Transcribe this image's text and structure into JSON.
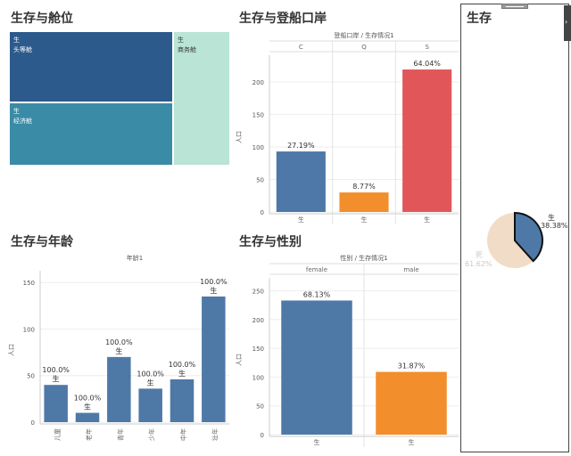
{
  "panels": {
    "treemap_title": "生存与舱位",
    "embark_title": "生存与登船口岸",
    "age_title": "生存与年龄",
    "sex_title": "生存与性别",
    "pie_title": "生存"
  },
  "colors": {
    "treemap_first": "#2c5a8c",
    "treemap_economy": "#3a8ba6",
    "treemap_business": "#b9e4d6",
    "bar_c": "#4d78a8",
    "bar_q": "#f28e2b",
    "bar_s": "#e15759",
    "bar_blue": "#4e79a7",
    "bar_orange": "#f28e2b",
    "pie_survived": "#4e79a7",
    "pie_died": "#f1dcc8"
  },
  "chart_data": [
    {
      "type": "treemap",
      "title": "生存与舱位",
      "items": [
        {
          "status": "生",
          "class": "头等舱"
        },
        {
          "status": "生",
          "class": "经济舱"
        },
        {
          "status": "生",
          "class": "商务舱"
        }
      ]
    },
    {
      "type": "bar",
      "title": "生存与登船口岸",
      "header": "登船口岸 / 生存情况1",
      "categories": [
        "C",
        "Q",
        "S"
      ],
      "values": [
        93,
        30,
        219
      ],
      "value_labels": [
        "27.19%",
        "8.77%",
        "64.04%"
      ],
      "bottom_labels": [
        "生",
        "生",
        "生"
      ],
      "ylabel": "人口",
      "ylim": [
        0,
        230
      ],
      "yticks": [
        "0",
        "50",
        "100",
        "150",
        "200"
      ]
    },
    {
      "type": "bar",
      "title": "生存与年龄",
      "header": "年龄1",
      "categories": [
        "儿童",
        "老年",
        "青年",
        "少年",
        "中年",
        "壮年"
      ],
      "values": [
        40,
        10,
        70,
        36,
        46,
        135
      ],
      "value_labels": [
        "100.0%",
        "100.0%",
        "100.0%",
        "100.0%",
        "100.0%",
        "100.0%"
      ],
      "sub_labels": [
        "生",
        "生",
        "生",
        "生",
        "生",
        "生"
      ],
      "ylabel": "人口",
      "ylim": [
        0,
        155
      ],
      "yticks": [
        "0",
        "50",
        "100",
        "150"
      ]
    },
    {
      "type": "bar",
      "title": "生存与性别",
      "header": "性别 / 生存情况1",
      "categories": [
        "female",
        "male"
      ],
      "values": [
        233,
        109
      ],
      "value_labels": [
        "68.13%",
        "31.87%"
      ],
      "bottom_labels": [
        "生",
        "生"
      ],
      "ylabel": "人口",
      "ylim": [
        0,
        260
      ],
      "yticks": [
        "0",
        "50",
        "100",
        "150",
        "200",
        "250"
      ]
    },
    {
      "type": "pie",
      "title": "生存",
      "slices": [
        {
          "label": "生",
          "percent": "38.38%",
          "value": 38.38
        },
        {
          "label": "死",
          "percent": "61.62%",
          "value": 61.62
        }
      ]
    }
  ]
}
